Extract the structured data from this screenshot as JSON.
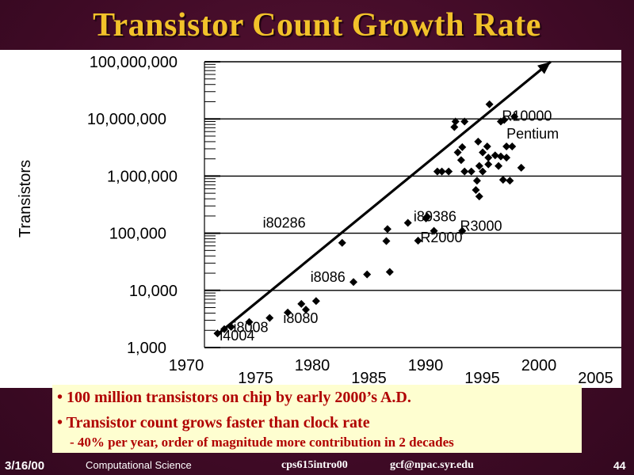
{
  "slide": {
    "title": "Transistor Count Growth Rate",
    "bullets": [
      "• 100 million transistors on chip by early 2000’s A.D.",
      "• Transistor count grows faster than clock rate"
    ],
    "sub_bullet": "- 40% per year, order of magnitude more contribution in 2 decades"
  },
  "footer": {
    "date": "3/16/00",
    "course": "Computational Science",
    "file": "cps615intro00",
    "email": "gcf@npac.syr.edu",
    "page": "44"
  },
  "colors": {
    "title": "#f2c22a",
    "background": "#4a0d2c",
    "bullet_text": "#b00000",
    "bullet_box": "#fefed0"
  },
  "chart_data": {
    "type": "scatter",
    "title": "",
    "xlabel": "",
    "ylabel": "Transistors",
    "x_scale": "linear",
    "y_scale": "log",
    "xlim": [
      1970,
      2005
    ],
    "ylim": [
      1000,
      100000000
    ],
    "x_ticks": [
      1970,
      1975,
      1980,
      1985,
      1990,
      1995,
      2000,
      2005
    ],
    "y_ticks": [
      {
        "value": 1000,
        "label": "1,000"
      },
      {
        "value": 10000,
        "label": "10,000"
      },
      {
        "value": 100000,
        "label": "100,000"
      },
      {
        "value": 1000000,
        "label": "1,000,000"
      },
      {
        "value": 10000000,
        "label": "10,000,000"
      },
      {
        "value": 100000000,
        "label": "100,000,000"
      }
    ],
    "grid": "horizontal at decades",
    "points": [
      {
        "x": 1970.8,
        "y": 1770
      },
      {
        "x": 1971.4,
        "y": 2100
      },
      {
        "x": 1972.0,
        "y": 2300
      },
      {
        "x": 1973.6,
        "y": 2800
      },
      {
        "x": 1975.4,
        "y": 3300
      },
      {
        "x": 1977.0,
        "y": 4100
      },
      {
        "x": 1978.2,
        "y": 5800
      },
      {
        "x": 1978.6,
        "y": 4600
      },
      {
        "x": 1979.5,
        "y": 6500
      },
      {
        "x": 1982.8,
        "y": 14000
      },
      {
        "x": 1984.0,
        "y": 19000
      },
      {
        "x": 1986.0,
        "y": 21000
      },
      {
        "x": 1981.8,
        "y": 68000
      },
      {
        "x": 1985.7,
        "y": 73000
      },
      {
        "x": 1985.8,
        "y": 118000
      },
      {
        "x": 1987.6,
        "y": 152000
      },
      {
        "x": 1989.3,
        "y": 195000
      },
      {
        "x": 1989.2,
        "y": 182000
      },
      {
        "x": 1988.5,
        "y": 74000
      },
      {
        "x": 1989.9,
        "y": 110000
      },
      {
        "x": 1992.4,
        "y": 110000
      },
      {
        "x": 1990.2,
        "y": 1200000
      },
      {
        "x": 1990.6,
        "y": 1200000
      },
      {
        "x": 1991.2,
        "y": 1200000
      },
      {
        "x": 1991.8,
        "y": 9000000
      },
      {
        "x": 1992.6,
        "y": 9000000
      },
      {
        "x": 1991.7,
        "y": 7200000
      },
      {
        "x": 1992.4,
        "y": 3200000
      },
      {
        "x": 1992.3,
        "y": 1900000
      },
      {
        "x": 1992.6,
        "y": 1200000
      },
      {
        "x": 1992.0,
        "y": 2600000
      },
      {
        "x": 1993.2,
        "y": 1200000
      },
      {
        "x": 1993.8,
        "y": 4000000
      },
      {
        "x": 1994.8,
        "y": 18000000
      },
      {
        "x": 1993.9,
        "y": 1500000
      },
      {
        "x": 1993.7,
        "y": 830000
      },
      {
        "x": 1993.6,
        "y": 570000
      },
      {
        "x": 1993.9,
        "y": 440000
      },
      {
        "x": 1994.2,
        "y": 2600000
      },
      {
        "x": 1994.6,
        "y": 3300000
      },
      {
        "x": 1994.7,
        "y": 1600000
      },
      {
        "x": 1995.3,
        "y": 2300000
      },
      {
        "x": 1995.6,
        "y": 1500000
      },
      {
        "x": 1995.8,
        "y": 2200000
      },
      {
        "x": 1996.0,
        "y": 860000
      },
      {
        "x": 1996.3,
        "y": 3300000
      },
      {
        "x": 1995.8,
        "y": 9000000
      },
      {
        "x": 1996.1,
        "y": 9600000
      },
      {
        "x": 1996.8,
        "y": 3300000
      },
      {
        "x": 1997.0,
        "y": 11000000
      },
      {
        "x": 1997.6,
        "y": 1400000
      },
      {
        "x": 1994.2,
        "y": 1200000
      },
      {
        "x": 1994.7,
        "y": 2100000
      },
      {
        "x": 1996.3,
        "y": 2100000
      },
      {
        "x": 1996.6,
        "y": 830000
      }
    ],
    "trend_line": {
      "start": {
        "x": 1970.8,
        "y": 1700
      },
      "end": {
        "x": 2000.2,
        "y": 100000000
      }
    },
    "annotations": [
      {
        "label": "i4004",
        "x": 1971.0,
        "y": 1330
      },
      {
        "label": "i8008",
        "x": 1972.2,
        "y": 1850
      },
      {
        "label": "i8080",
        "x": 1976.6,
        "y": 2680
      },
      {
        "label": "i8086",
        "x": 1979.0,
        "y": 14100
      },
      {
        "label": "i80286",
        "x": 1974.8,
        "y": 126000
      },
      {
        "label": "i80386",
        "x": 1988.1,
        "y": 162000
      },
      {
        "label": "R2000",
        "x": 1988.7,
        "y": 69000
      },
      {
        "label": "R3000",
        "x": 1992.2,
        "y": 111000
      },
      {
        "label": "R10000",
        "x": 1995.9,
        "y": 9300000
      },
      {
        "label": "Pentium",
        "x": 1996.3,
        "y": 4500000
      }
    ]
  }
}
